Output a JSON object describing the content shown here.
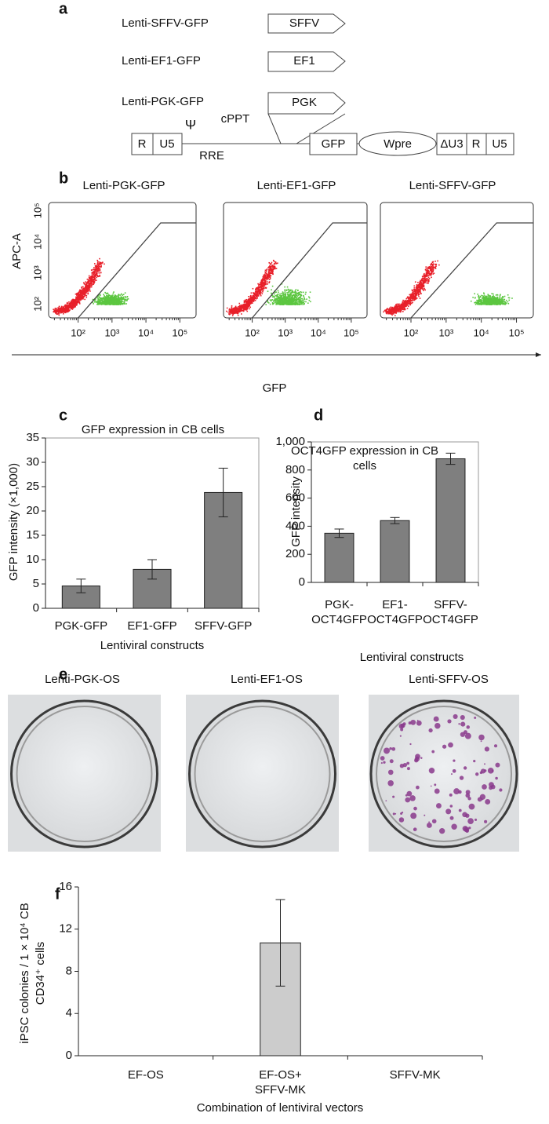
{
  "panel_a": {
    "letter": "a",
    "constructs": [
      "Lenti-SFFV-GFP",
      "Lenti-EF1-GFP",
      "Lenti-PGK-GFP"
    ],
    "promoters": [
      "SFFV",
      "EF1",
      "PGK"
    ],
    "vector": [
      "R",
      "U5",
      "Ψ",
      "cPPT",
      "RRE",
      "GFP",
      "Wpre",
      "ΔU3",
      "R",
      "U5"
    ]
  },
  "panel_b": {
    "letter": "b",
    "titles": [
      "Lenti-PGK-GFP",
      "Lenti-EF1-GFP",
      "Lenti-SFFV-GFP"
    ],
    "ylabel": "APC-A",
    "xlabel": "GFP",
    "ticks": [
      "10²",
      "10³",
      "10⁴",
      "10⁵"
    ]
  },
  "panel_e": {
    "letter": "e",
    "titles": [
      "Lenti-PGK-OS",
      "Lenti-EF1-OS",
      "Lenti-SFFV-OS"
    ]
  },
  "chart_data": [
    {
      "type": "bar",
      "panel": "c",
      "title": [
        "GFP expression in CB cells"
      ],
      "ylabel": [
        "GFP intensity (×1,000)"
      ],
      "xlabel": "Lentiviral constructs",
      "categories": [
        [
          "PGK-GFP"
        ],
        [
          "EF1-GFP"
        ],
        [
          "SFFV-GFP"
        ]
      ],
      "values": [
        4.6,
        8.0,
        23.8
      ],
      "errors": [
        1.4,
        2.0,
        5.0
      ],
      "color": "#7f7f7f",
      "ylim": [
        0,
        35
      ],
      "yticks": [
        0,
        5,
        10,
        15,
        20,
        25,
        30,
        35
      ],
      "grid": false
    },
    {
      "type": "bar",
      "panel": "d",
      "title": [
        "OCT4GFP expression in CB",
        "cells"
      ],
      "ylabel": [
        "GFP intensity"
      ],
      "xlabel": "Lentiviral constructs",
      "categories": [
        [
          "PGK-",
          "OCT4GFP"
        ],
        [
          "EF1-",
          "OCT4GFP"
        ],
        [
          "SFFV-",
          "OCT4GFP"
        ]
      ],
      "values": [
        350,
        440,
        880
      ],
      "errors": [
        30,
        22,
        40
      ],
      "color": "#7f7f7f",
      "ylim": [
        0,
        1000
      ],
      "yticks": [
        0,
        200,
        400,
        600,
        800,
        {
          "value": 1000,
          "label": "1,000"
        }
      ],
      "grid": false
    },
    {
      "type": "bar",
      "panel": "f",
      "ylabel": [
        "iPSC colonies / 1 × 10⁴ CB",
        "CD34⁺ cells"
      ],
      "xlabel": "Combination of lentiviral vectors",
      "categories": [
        [
          "EF-OS"
        ],
        [
          "EF-OS+",
          "SFFV-MK"
        ],
        [
          "SFFV-MK"
        ]
      ],
      "values": [
        0,
        10.7,
        0
      ],
      "errors": [
        null,
        4.1,
        null
      ],
      "color": "#cccccc",
      "ylim": [
        0,
        16
      ],
      "yticks": [
        0,
        4,
        8,
        12,
        16
      ],
      "grid": false
    }
  ]
}
